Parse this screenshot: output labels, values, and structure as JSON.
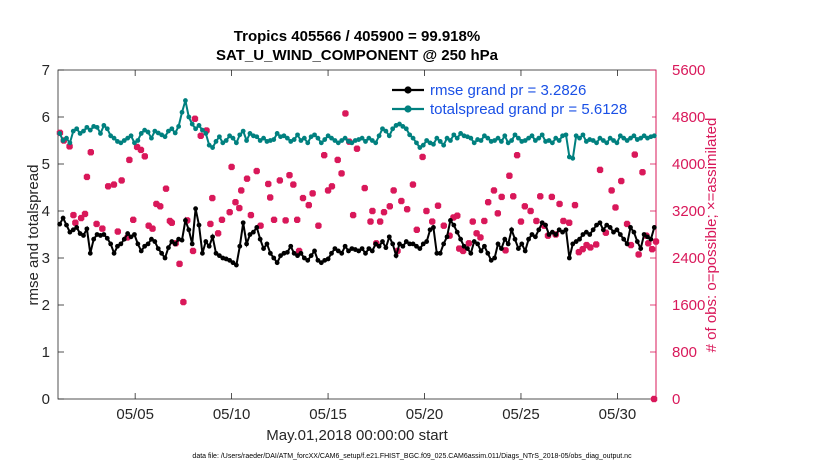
{
  "chart_data": {
    "type": "line",
    "title": [
      "Tropics 405566 / 405900 = 99.918%",
      "SAT_U_WIND_COMPONENT @ 250 hPa"
    ],
    "xlabel": "May.01,2018 00:00:00 start",
    "ylabel_left": "rmse and totalspread",
    "ylabel_right": "# of obs: o=possible; ×=assimilated",
    "footnote": "data file: /Users/raeder/DAI/ATM_forcXX/CAM6_setup/f.e21.FHIST_BGC.f09_025.CAM6assim.011/Diags_NTrS_2018-05/obs_diag_output.nc",
    "x_tick_labels": [
      "05/05",
      "05/10",
      "05/15",
      "05/20",
      "05/25",
      "05/30"
    ],
    "x_tick_positions_days": [
      4,
      9,
      14,
      19,
      24,
      29
    ],
    "xlim_days": [
      0,
      31
    ],
    "ylim_left": [
      0,
      7
    ],
    "ylim_right": [
      0,
      5600
    ],
    "y_ticks_left": [
      0,
      1,
      2,
      3,
      4,
      5,
      6,
      7
    ],
    "y_ticks_right": [
      0,
      800,
      1600,
      2400,
      3200,
      4000,
      4800,
      5600
    ],
    "series": [
      {
        "name": "rmse grand pr = 3.2826",
        "color": "#000000",
        "axis": "left",
        "values": [
          3.72,
          3.85,
          3.7,
          3.55,
          3.6,
          3.65,
          3.52,
          3.48,
          3.62,
          3.1,
          3.4,
          3.5,
          3.48,
          3.5,
          3.42,
          3.3,
          3.1,
          3.25,
          3.3,
          3.4,
          3.52,
          3.45,
          3.5,
          3.3,
          3.15,
          3.25,
          3.3,
          3.4,
          3.35,
          3.2,
          3.1,
          3.0,
          3.22,
          3.35,
          3.3,
          3.4,
          3.38,
          3.8,
          3.6,
          3.3,
          4.05,
          3.7,
          3.1,
          3.35,
          3.25,
          3.45,
          3.1,
          3.05,
          3.0,
          2.98,
          2.95,
          2.9,
          2.85,
          3.25,
          3.75,
          3.3,
          3.5,
          3.55,
          3.65,
          3.4,
          3.2,
          3.3,
          3.1,
          3.0,
          2.9,
          3.05,
          3.1,
          3.12,
          3.25,
          3.1,
          3.05,
          3.1,
          3.0,
          2.95,
          3.05,
          3.15,
          2.95,
          2.9,
          2.95,
          2.98,
          3.1,
          3.2,
          3.15,
          3.1,
          3.25,
          3.15,
          3.2,
          3.18,
          3.15,
          3.2,
          3.1,
          3.2,
          3.15,
          3.3,
          3.25,
          3.35,
          3.22,
          3.45,
          3.3,
          3.05,
          3.3,
          3.25,
          3.35,
          3.3,
          3.3,
          3.25,
          3.2,
          3.3,
          3.35,
          3.6,
          3.65,
          3.1,
          3.1,
          3.3,
          3.45,
          3.8,
          3.7,
          3.55,
          3.4,
          3.25,
          3.2,
          3.1,
          3.35,
          3.3,
          3.15,
          3.25,
          3.1,
          2.95,
          3.0,
          3.3,
          3.2,
          3.4,
          3.3,
          3.6,
          3.4,
          3.2,
          3.3,
          3.15,
          3.4,
          3.5,
          3.45,
          3.6,
          3.75,
          3.7,
          3.5,
          3.55,
          3.5,
          3.6,
          3.55,
          3.6,
          3.0,
          3.3,
          3.35,
          3.4,
          3.5,
          3.55,
          3.5,
          3.6,
          3.7,
          3.75,
          3.6,
          3.7,
          3.65,
          3.55,
          3.6,
          3.5,
          3.4,
          3.3,
          3.65,
          3.55,
          3.35,
          3.2,
          3.5,
          3.45,
          3.4,
          3.65
        ]
      },
      {
        "name": "totalspread grand pr = 5.6128",
        "color": "#00807f",
        "axis": "left",
        "values": [
          5.65,
          5.5,
          5.55,
          5.45,
          5.7,
          5.75,
          5.65,
          5.7,
          5.78,
          5.72,
          5.8,
          5.78,
          5.65,
          5.82,
          5.75,
          5.6,
          5.55,
          5.48,
          5.45,
          5.5,
          5.55,
          5.6,
          5.45,
          5.5,
          5.65,
          5.72,
          5.68,
          5.55,
          5.7,
          5.66,
          5.62,
          5.58,
          5.7,
          5.75,
          5.66,
          5.8,
          6.1,
          6.35,
          6.0,
          5.85,
          5.75,
          5.82,
          5.72,
          5.65,
          5.4,
          5.35,
          5.48,
          5.58,
          5.45,
          5.5,
          5.6,
          5.55,
          5.45,
          5.62,
          5.7,
          5.5,
          5.65,
          5.6,
          5.58,
          5.5,
          5.55,
          5.48,
          5.5,
          5.52,
          5.65,
          5.58,
          5.6,
          5.55,
          5.48,
          5.52,
          5.62,
          5.5,
          5.55,
          5.45,
          5.58,
          5.62,
          5.55,
          5.45,
          5.52,
          5.6,
          5.55,
          5.5,
          5.45,
          5.5,
          5.55,
          5.48,
          5.45,
          5.5,
          5.52,
          5.55,
          5.48,
          5.55,
          5.5,
          5.45,
          5.6,
          5.75,
          5.7,
          5.6,
          5.75,
          5.82,
          5.85,
          5.8,
          5.75,
          5.62,
          5.55,
          5.45,
          5.35,
          5.4,
          5.5,
          5.45,
          5.42,
          5.55,
          5.48,
          5.4,
          5.55,
          5.5,
          5.62,
          5.55,
          5.65,
          5.6,
          5.58,
          5.55,
          5.45,
          5.52,
          5.5,
          5.6,
          5.55,
          5.48,
          5.5,
          5.55,
          5.48,
          5.6,
          5.45,
          5.5,
          5.62,
          5.55,
          5.48,
          5.5,
          5.55,
          5.6,
          5.5,
          5.55,
          5.62,
          5.48,
          5.5,
          5.45,
          5.55,
          5.5,
          5.6,
          5.62,
          5.15,
          5.12,
          5.6,
          5.55,
          5.62,
          5.48,
          5.52,
          5.5,
          5.45,
          5.55,
          5.5,
          5.45,
          5.55,
          5.5,
          5.45,
          5.6,
          5.55,
          5.5,
          5.55,
          5.6,
          5.52,
          5.55,
          5.6,
          5.55,
          5.58,
          5.6
        ]
      }
    ],
    "obs_points": {
      "name": "assimilated obs",
      "color": "#d9185a",
      "axis": "right",
      "points": [
        [
          0.1,
          4530
        ],
        [
          0.3,
          4400
        ],
        [
          0.6,
          4300
        ],
        [
          0.8,
          3130
        ],
        [
          0.9,
          3000
        ],
        [
          1.2,
          3080
        ],
        [
          1.4,
          3150
        ],
        [
          1.5,
          3780
        ],
        [
          1.7,
          4200
        ],
        [
          2.0,
          2980
        ],
        [
          2.3,
          2900
        ],
        [
          2.6,
          3620
        ],
        [
          2.9,
          3650
        ],
        [
          3.1,
          2850
        ],
        [
          3.3,
          3720
        ],
        [
          3.6,
          2750
        ],
        [
          3.7,
          4070
        ],
        [
          3.9,
          3050
        ],
        [
          4.1,
          4290
        ],
        [
          4.3,
          4240
        ],
        [
          4.5,
          4130
        ],
        [
          4.7,
          2950
        ],
        [
          4.9,
          2900
        ],
        [
          5.1,
          3320
        ],
        [
          5.3,
          3280
        ],
        [
          5.6,
          3580
        ],
        [
          5.8,
          3030
        ],
        [
          5.9,
          3000
        ],
        [
          6.1,
          2650
        ],
        [
          6.3,
          2300
        ],
        [
          6.5,
          1650
        ],
        [
          6.7,
          3040
        ],
        [
          7.0,
          2520
        ],
        [
          7.1,
          4770
        ],
        [
          7.4,
          4480
        ],
        [
          7.7,
          4570
        ],
        [
          7.9,
          2980
        ],
        [
          8.0,
          3420
        ],
        [
          8.3,
          2820
        ],
        [
          8.5,
          3050
        ],
        [
          8.9,
          3180
        ],
        [
          9.0,
          3950
        ],
        [
          9.2,
          3350
        ],
        [
          9.4,
          3250
        ],
        [
          9.5,
          3550
        ],
        [
          9.8,
          3750
        ],
        [
          10.0,
          3130
        ],
        [
          10.3,
          3880
        ],
        [
          10.5,
          2950
        ],
        [
          10.9,
          3660
        ],
        [
          11.0,
          3430
        ],
        [
          11.2,
          3050
        ],
        [
          11.5,
          3720
        ],
        [
          11.8,
          3040
        ],
        [
          12.0,
          3810
        ],
        [
          12.2,
          3650
        ],
        [
          12.4,
          3050
        ],
        [
          12.5,
          2520
        ],
        [
          12.7,
          3420
        ],
        [
          13.0,
          3300
        ],
        [
          13.2,
          3500
        ],
        [
          13.5,
          2950
        ],
        [
          13.8,
          4150
        ],
        [
          14.0,
          3550
        ],
        [
          14.2,
          3620
        ],
        [
          14.5,
          4070
        ],
        [
          14.7,
          3840
        ],
        [
          14.9,
          4860
        ],
        [
          15.1,
          4380
        ],
        [
          15.3,
          3130
        ],
        [
          15.5,
          4260
        ],
        [
          15.9,
          3590
        ],
        [
          16.2,
          3020
        ],
        [
          16.3,
          3200
        ],
        [
          16.5,
          2650
        ],
        [
          16.7,
          3020
        ],
        [
          16.9,
          3180
        ],
        [
          17.2,
          3280
        ],
        [
          17.4,
          3550
        ],
        [
          17.6,
          2520
        ],
        [
          17.8,
          3370
        ],
        [
          18.1,
          3230
        ],
        [
          18.4,
          3650
        ],
        [
          18.6,
          2880
        ],
        [
          18.9,
          4120
        ],
        [
          19.1,
          3200
        ],
        [
          19.4,
          3020
        ],
        [
          19.7,
          3290
        ],
        [
          20.0,
          2950
        ],
        [
          20.3,
          2780
        ],
        [
          20.5,
          3090
        ],
        [
          20.7,
          3120
        ],
        [
          20.8,
          2560
        ],
        [
          21.0,
          2520
        ],
        [
          21.3,
          2650
        ],
        [
          21.5,
          3020
        ],
        [
          21.7,
          2820
        ],
        [
          21.9,
          2750
        ],
        [
          22.1,
          3030
        ],
        [
          22.3,
          3350
        ],
        [
          22.6,
          3550
        ],
        [
          22.8,
          3160
        ],
        [
          23.0,
          3440
        ],
        [
          23.2,
          2530
        ],
        [
          23.4,
          3800
        ],
        [
          23.6,
          3450
        ],
        [
          23.8,
          4150
        ],
        [
          24.0,
          3020
        ],
        [
          24.2,
          3280
        ],
        [
          24.5,
          3200
        ],
        [
          24.8,
          3030
        ],
        [
          25.0,
          3450
        ],
        [
          25.2,
          2950
        ],
        [
          25.4,
          2780
        ],
        [
          25.6,
          3440
        ],
        [
          25.8,
          2800
        ],
        [
          26.0,
          3320
        ],
        [
          26.2,
          3030
        ],
        [
          26.5,
          3000
        ],
        [
          26.8,
          3300
        ],
        [
          27.0,
          2500
        ],
        [
          27.2,
          2550
        ],
        [
          27.4,
          2620
        ],
        [
          27.6,
          2580
        ],
        [
          27.9,
          2630
        ],
        [
          28.1,
          3900
        ],
        [
          28.4,
          2830
        ],
        [
          28.7,
          3550
        ],
        [
          28.9,
          3260
        ],
        [
          29.2,
          3710
        ],
        [
          29.5,
          2980
        ],
        [
          29.7,
          2620
        ],
        [
          29.9,
          4160
        ],
        [
          30.1,
          2460
        ],
        [
          30.3,
          3860
        ],
        [
          30.5,
          2780
        ],
        [
          30.6,
          2650
        ],
        [
          30.8,
          2550
        ],
        [
          31.0,
          2680
        ],
        [
          30.9,
          0
        ]
      ]
    }
  }
}
